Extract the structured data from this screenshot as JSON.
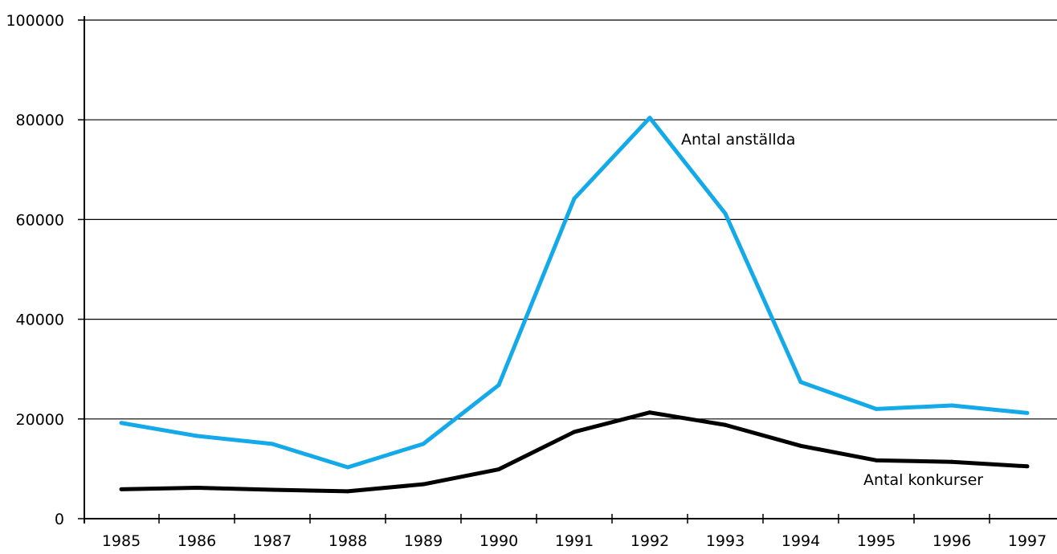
{
  "chart_data": {
    "type": "line",
    "x": [
      "1985",
      "1986",
      "1987",
      "1988",
      "1989",
      "1990",
      "1991",
      "1992",
      "1993",
      "1994",
      "1995",
      "1996",
      "1997"
    ],
    "series": [
      {
        "name": "Antal anställda",
        "color": "#14a9e8",
        "values": [
          19200,
          16600,
          15000,
          10300,
          15000,
          26800,
          64200,
          80400,
          61200,
          27400,
          22000,
          22700,
          21200
        ]
      },
      {
        "name": "Antal konkurser",
        "color": "#000000",
        "values": [
          5900,
          6200,
          5800,
          5500,
          6900,
          9900,
          17400,
          21300,
          18800,
          14600,
          11700,
          11400,
          10500
        ]
      }
    ],
    "y_ticks": [
      "0",
      "20000",
      "40000",
      "60000",
      "80000",
      "100000"
    ],
    "ylim": [
      0,
      100000
    ],
    "grid": true,
    "title": "",
    "xlabel": "",
    "ylabel": ""
  }
}
